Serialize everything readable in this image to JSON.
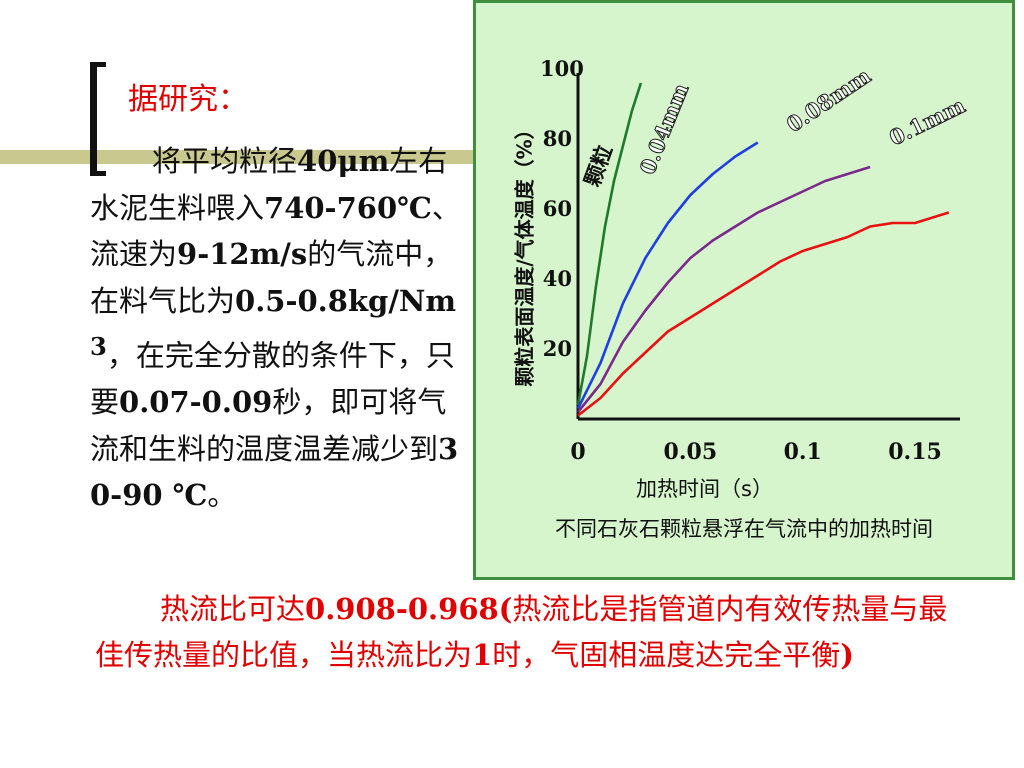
{
  "slide": {
    "heading": "据研究：",
    "body": [
      {
        "t": "将平均粒径",
        "b": false
      },
      {
        "t": "40μm",
        "b": true
      },
      {
        "t": "左右水泥生料喂入",
        "b": false
      },
      {
        "t": "740-760℃",
        "b": true
      },
      {
        "t": "、流速为",
        "b": false
      },
      {
        "t": "9-12m/s",
        "b": true
      },
      {
        "t": "的气流中，在料气比为",
        "b": false
      },
      {
        "t": "0.5-0.8kg/Nm",
        "b": true
      },
      {
        "t": "3",
        "b": true,
        "sup": true
      },
      {
        "t": "，在完全分散的条件下，只要",
        "b": false
      },
      {
        "t": "0.07-0.09",
        "b": true
      },
      {
        "t": "秒，即可将气流和生料的温度温差减少到",
        "b": false
      },
      {
        "t": "30-90 ℃",
        "b": true
      },
      {
        "t": "。",
        "b": false
      }
    ],
    "bottom": [
      {
        "t": "热流比可达",
        "b": false
      },
      {
        "t": "0.908-0.968(",
        "b": true
      },
      {
        "t": "热流比是指管道内有效传热量与最佳传热量的比值，当热流比为",
        "b": false
      },
      {
        "t": "1",
        "b": true
      },
      {
        "t": "时，气固相温度达完全平衡",
        "b": false
      },
      {
        "t": ")",
        "b": true
      }
    ]
  },
  "chart_data": {
    "type": "line",
    "caption": "不同石灰石颗粒悬浮在气流中的加热时间",
    "xlabel": "加热时间（s）",
    "ylabel": "颗粒表面温度/气体温度（%）",
    "xlim": [
      0,
      0.17
    ],
    "ylim": [
      0,
      100
    ],
    "x_ticks": [
      "0",
      "0.05",
      "0.1",
      "0.15"
    ],
    "x_tick_values": [
      0,
      0.05,
      0.1,
      0.15
    ],
    "y_ticks": [
      "20",
      "40",
      "60",
      "80",
      "100"
    ],
    "y_tick_values": [
      20,
      40,
      60,
      80,
      100
    ],
    "colors": {
      "green": "#1f7a2a",
      "blue": "#1f3fe0",
      "purple": "#7a2a8a",
      "red": "#e81010"
    },
    "series": [
      {
        "name": "颗粒",
        "color": "green",
        "x": [
          0,
          0.004,
          0.008,
          0.012,
          0.016,
          0.02,
          0.024,
          0.028
        ],
        "y": [
          4,
          18,
          38,
          55,
          68,
          78,
          88,
          96
        ]
      },
      {
        "name": "0.04mm",
        "color": "blue",
        "x": [
          0,
          0.01,
          0.02,
          0.03,
          0.04,
          0.05,
          0.06,
          0.07,
          0.08
        ],
        "y": [
          3,
          16,
          33,
          46,
          56,
          64,
          70,
          75,
          79
        ]
      },
      {
        "name": "0.08mm",
        "color": "purple",
        "x": [
          0,
          0.01,
          0.02,
          0.03,
          0.04,
          0.05,
          0.06,
          0.07,
          0.08,
          0.09,
          0.1,
          0.11,
          0.12,
          0.13
        ],
        "y": [
          2,
          10,
          22,
          31,
          39,
          46,
          51,
          55,
          59,
          62,
          65,
          68,
          70,
          72
        ]
      },
      {
        "name": "0.1mm",
        "color": "red",
        "x": [
          0,
          0.01,
          0.02,
          0.03,
          0.04,
          0.05,
          0.06,
          0.07,
          0.08,
          0.09,
          0.1,
          0.11,
          0.12,
          0.13,
          0.14,
          0.15,
          0.16,
          0.165
        ],
        "y": [
          1,
          6,
          13,
          19,
          25,
          29,
          33,
          37,
          41,
          45,
          48,
          50,
          52,
          55,
          56,
          56,
          58,
          59
        ]
      }
    ],
    "grid": false,
    "legend": "inline-labels"
  }
}
